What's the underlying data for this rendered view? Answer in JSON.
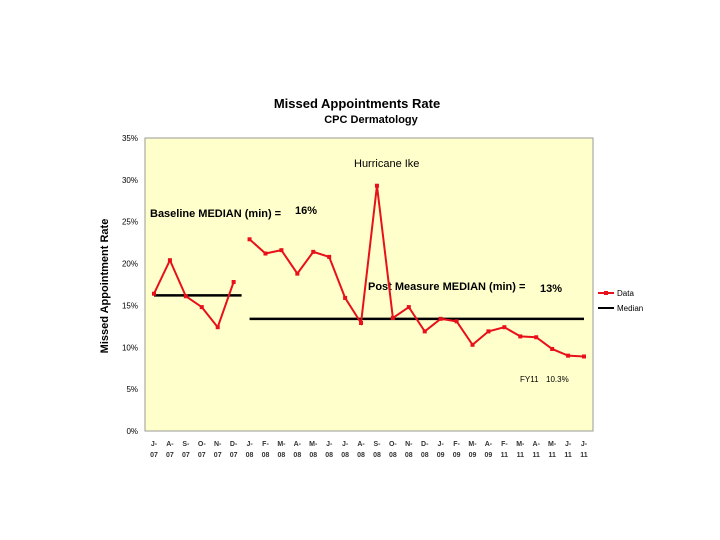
{
  "chart_data": {
    "type": "line",
    "title": "Missed Appointments  Rate",
    "subtitle": "CPC Dermatology",
    "ylabel": "Missed Appointment Rate",
    "xlabel": "",
    "ylim": [
      0,
      35
    ],
    "yticks": [
      "0%",
      "5%",
      "10%",
      "15%",
      "20%",
      "25%",
      "30%",
      "35%"
    ],
    "ytick_values": [
      0,
      5,
      10,
      15,
      20,
      25,
      30,
      35
    ],
    "categories": [
      [
        "J-",
        "07"
      ],
      [
        "A-",
        "07"
      ],
      [
        "S-",
        "07"
      ],
      [
        "O-",
        "07"
      ],
      [
        "N-",
        "07"
      ],
      [
        "D-",
        "07"
      ],
      [
        "J-",
        "08"
      ],
      [
        "F-",
        "08"
      ],
      [
        "M-",
        "08"
      ],
      [
        "A-",
        "08"
      ],
      [
        "M-",
        "08"
      ],
      [
        "J-",
        "08"
      ],
      [
        "J-",
        "08"
      ],
      [
        "A-",
        "08"
      ],
      [
        "S-",
        "08"
      ],
      [
        "O-",
        "08"
      ],
      [
        "N-",
        "08"
      ],
      [
        "D-",
        "08"
      ],
      [
        "J-",
        "09"
      ],
      [
        "F-",
        "09"
      ],
      [
        "M-",
        "09"
      ],
      [
        "A-",
        "09"
      ],
      [
        "F-",
        "11"
      ],
      [
        "M-",
        "11"
      ],
      [
        "A-",
        "11"
      ],
      [
        "M-",
        "11"
      ],
      [
        "J-",
        "11"
      ],
      [
        "J-",
        "11"
      ]
    ],
    "series": [
      {
        "name": "Data",
        "color": "#e8101a",
        "segments": [
          {
            "start": 0,
            "values": [
              16.4,
              20.4,
              16.1,
              14.8,
              12.4,
              17.8
            ]
          },
          {
            "start": 6,
            "values": [
              22.9,
              21.2,
              21.6,
              18.8,
              21.4,
              20.8,
              15.9,
              12.9,
              29.3,
              13.5,
              14.8,
              11.9,
              13.4,
              13.1,
              10.3,
              11.9,
              12.4,
              11.3,
              11.2,
              9.8,
              9.0,
              8.9
            ]
          }
        ]
      },
      {
        "name": "Median",
        "color": "#000000",
        "segments": [
          {
            "from": 0,
            "to": 5.5,
            "value": 16.2
          },
          {
            "from": 6,
            "to": 27,
            "value": 13.4
          }
        ]
      }
    ],
    "annotations": {
      "hurricane": "Hurricane Ike",
      "baseline_label": "Baseline MEDIAN (min) =",
      "baseline_value": "16%",
      "post_label": "Post Measure MEDIAN (min) =",
      "post_value": "13%",
      "fy11_label": "FY11",
      "fy11_value": "10.3%"
    },
    "legend": [
      "Data",
      "Median"
    ],
    "legend_position": "right",
    "grid": false
  }
}
